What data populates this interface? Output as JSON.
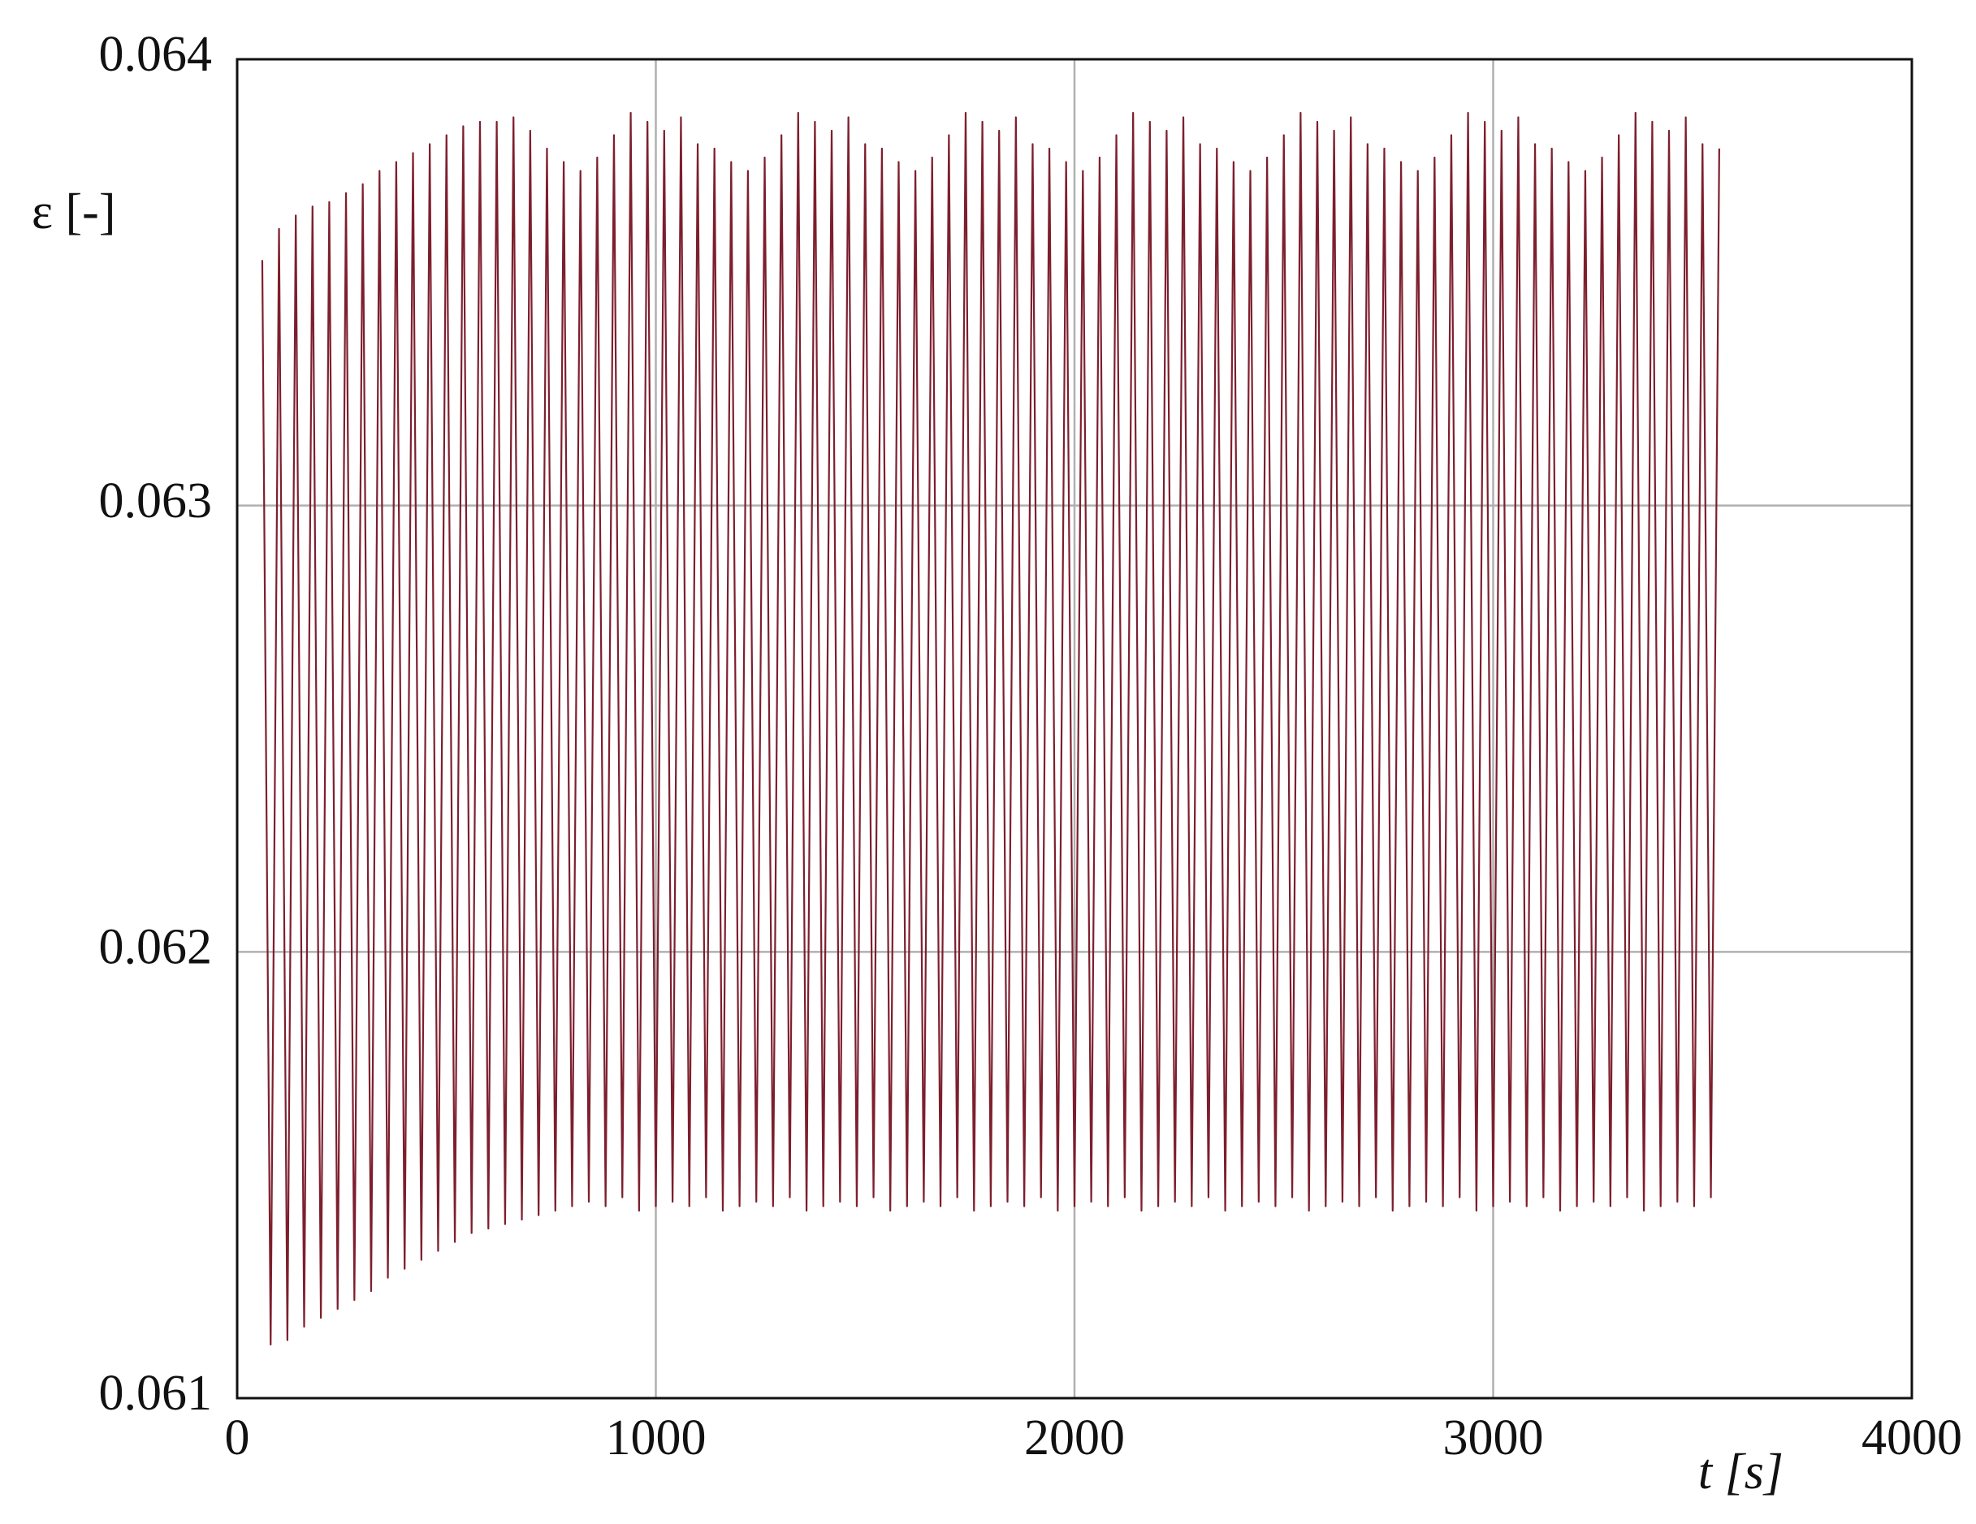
{
  "chart_data": {
    "type": "line",
    "ylabel": "ε  [-]",
    "xlabel": "t   [s]",
    "xlim": [
      0,
      4000
    ],
    "xticks": [
      0,
      1000,
      2000,
      3000,
      4000
    ],
    "ylim": [
      0.061,
      0.064
    ],
    "yticks": [
      0.061,
      0.062,
      0.063,
      0.064
    ],
    "grid": true,
    "x": [
      60,
      80,
      100,
      120,
      140,
      160,
      180,
      200,
      220,
      240,
      260,
      280,
      300,
      320,
      340,
      360,
      380,
      400,
      420,
      440,
      460,
      480,
      500,
      520,
      540,
      560,
      580,
      600,
      620,
      640,
      660,
      680,
      700,
      720,
      740,
      760,
      780,
      800,
      820,
      840,
      860,
      880,
      900,
      920,
      940,
      960,
      980,
      1000,
      1020,
      1040,
      1060,
      1080,
      1100,
      1120,
      1140,
      1160,
      1180,
      1200,
      1220,
      1240,
      1260,
      1280,
      1300,
      1320,
      1340,
      1360,
      1380,
      1400,
      1420,
      1440,
      1460,
      1480,
      1500,
      1520,
      1540,
      1560,
      1580,
      1600,
      1620,
      1640,
      1660,
      1680,
      1700,
      1720,
      1740,
      1760,
      1780,
      1800,
      1820,
      1840,
      1860,
      1880,
      1900,
      1920,
      1940,
      1960,
      1980,
      2000,
      2020,
      2040,
      2060,
      2080,
      2100,
      2120,
      2140,
      2160,
      2180,
      2200,
      2220,
      2240,
      2260,
      2280,
      2300,
      2320,
      2340,
      2360,
      2380,
      2400,
      2420,
      2440,
      2460,
      2480,
      2500,
      2520,
      2540,
      2560,
      2580,
      2600,
      2620,
      2640,
      2660,
      2680,
      2700,
      2720,
      2740,
      2760,
      2780,
      2800,
      2820,
      2840,
      2860,
      2880,
      2900,
      2920,
      2940,
      2960,
      2980,
      3000,
      3020,
      3040,
      3060,
      3080,
      3100,
      3120,
      3140,
      3160,
      3180,
      3200,
      3220,
      3240,
      3260,
      3280,
      3300,
      3320,
      3340,
      3360,
      3380,
      3400,
      3420,
      3440,
      3460,
      3480,
      3500,
      3520,
      3540
    ],
    "series": [
      {
        "color": "#7d1f2e",
        "values": [
          0.06355,
          0.06112,
          0.06362,
          0.06113,
          0.06365,
          0.06116,
          0.06367,
          0.06118,
          0.06368,
          0.0612,
          0.0637,
          0.06122,
          0.06372,
          0.06124,
          0.06375,
          0.06127,
          0.06377,
          0.06129,
          0.06379,
          0.06131,
          0.06381,
          0.06133,
          0.06383,
          0.06135,
          0.06385,
          0.06137,
          0.06386,
          0.06138,
          0.06386,
          0.06139,
          0.06387,
          0.0614,
          0.06384,
          0.06141,
          0.0638,
          0.06142,
          0.06377,
          0.06143,
          0.06375,
          0.06144,
          0.06378,
          0.06143,
          0.06383,
          0.06145,
          0.06388,
          0.06142,
          0.06386,
          0.06143,
          0.06384,
          0.06144,
          0.06387,
          0.06143,
          0.06381,
          0.06145,
          0.0638,
          0.06142,
          0.06377,
          0.06143,
          0.06375,
          0.06144,
          0.06378,
          0.06143,
          0.06383,
          0.06145,
          0.06388,
          0.06142,
          0.06386,
          0.06143,
          0.06384,
          0.06144,
          0.06387,
          0.06143,
          0.06381,
          0.06145,
          0.0638,
          0.06142,
          0.06377,
          0.06143,
          0.06375,
          0.06144,
          0.06378,
          0.06143,
          0.06383,
          0.06145,
          0.06388,
          0.06142,
          0.06386,
          0.06143,
          0.06384,
          0.06144,
          0.06387,
          0.06143,
          0.06381,
          0.06145,
          0.0638,
          0.06142,
          0.06377,
          0.06143,
          0.06375,
          0.06144,
          0.06378,
          0.06143,
          0.06383,
          0.06145,
          0.06388,
          0.06142,
          0.06386,
          0.06143,
          0.06384,
          0.06144,
          0.06387,
          0.06143,
          0.06381,
          0.06145,
          0.0638,
          0.06142,
          0.06377,
          0.06143,
          0.06375,
          0.06144,
          0.06378,
          0.06143,
          0.06383,
          0.06145,
          0.06388,
          0.06142,
          0.06386,
          0.06143,
          0.06384,
          0.06144,
          0.06387,
          0.06143,
          0.06381,
          0.06145,
          0.0638,
          0.06142,
          0.06377,
          0.06143,
          0.06375,
          0.06144,
          0.06378,
          0.06143,
          0.06383,
          0.06145,
          0.06388,
          0.06142,
          0.06386,
          0.06143,
          0.06384,
          0.06144,
          0.06387,
          0.06143,
          0.06381,
          0.06145,
          0.0638,
          0.06142,
          0.06377,
          0.06143,
          0.06375,
          0.06144,
          0.06378,
          0.06143,
          0.06383,
          0.06145,
          0.06388,
          0.06142,
          0.06386,
          0.06143,
          0.06384,
          0.06144,
          0.06387,
          0.06143,
          0.06381,
          0.06145,
          0.0638
        ]
      }
    ]
  }
}
